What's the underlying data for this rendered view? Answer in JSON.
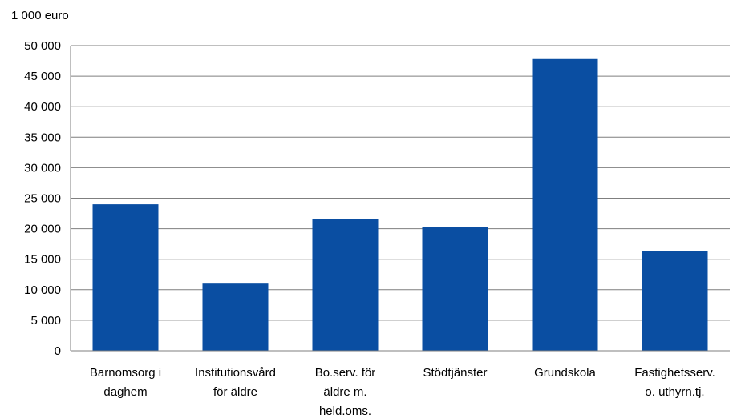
{
  "chart_data": {
    "type": "bar",
    "unit_label": "1 000 euro",
    "categories": [
      [
        "Barnomsorg i",
        "daghem"
      ],
      [
        "Institutionsvård",
        "för äldre"
      ],
      [
        "Bo.serv. för",
        "äldre m.",
        "held.oms."
      ],
      [
        "Stödtjänster"
      ],
      [
        "Grundskola"
      ],
      [
        "Fastighetsserv.",
        "o. uthyrn.tj."
      ]
    ],
    "values": [
      24000,
      11000,
      21600,
      20300,
      47800,
      16400
    ],
    "ylim": [
      0,
      50000
    ],
    "yticks": [
      0,
      5000,
      10000,
      15000,
      20000,
      25000,
      30000,
      35000,
      40000,
      45000,
      50000
    ],
    "ytick_labels": [
      "0",
      "5 000",
      "10 000",
      "15 000",
      "20 000",
      "25 000",
      "30 000",
      "35 000",
      "40 000",
      "45 000",
      "50 000"
    ],
    "grid": true,
    "legend": "none",
    "bar_color": "#0A4EA2"
  }
}
